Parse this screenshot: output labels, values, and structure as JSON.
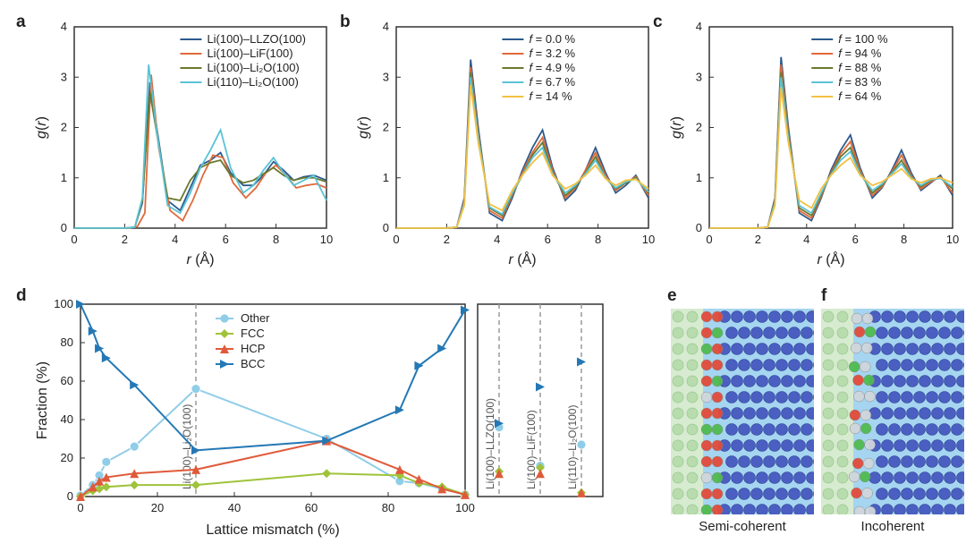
{
  "panel_labels": {
    "a": "a",
    "b": "b",
    "c": "c",
    "d": "d",
    "e": "e",
    "f": "f"
  },
  "colors": {
    "darkblue": "#2c5a8c",
    "orange": "#e06a3b",
    "olive": "#6a7a2d",
    "cyan": "#5bc3d6",
    "yellow": "#f2c142",
    "bcc": "#2478b5",
    "hcp": "#e05a3a",
    "fcc": "#9fc33a",
    "other": "#8fcde8",
    "axis": "#333333",
    "grid": "#cccccc",
    "bg": "#ffffff",
    "atom_bcc": "#4a5fc1",
    "atom_fcc": "#4fbb4f",
    "atom_hcp": "#e24a3a",
    "atom_other": "#d0d6dc",
    "slab_left": "#cfe8c7",
    "slab_right": "#7fc3ea"
  },
  "top_axes": {
    "xlabel": "r (Å)",
    "ylabel": "g(r)",
    "x_italic": "r",
    "y_italic": "g(r)",
    "xlim": [
      0,
      10
    ],
    "ylim": [
      0,
      4
    ],
    "xtick_step": 2,
    "ytick_step": 1,
    "label_fontsize": 16,
    "tick_fontsize": 13
  },
  "panel_a": {
    "legend": [
      "Li(100)–LLZO(100)",
      "Li(100)–LiF(100)",
      "Li(100)–Li₂O(100)",
      "Li(110)–Li₂O(100)"
    ],
    "legend_colors": [
      "#2c5a8c",
      "#e06a3b",
      "#6a7a2d",
      "#5bc3d6"
    ],
    "series": [
      {
        "color": "#2c5a8c",
        "x": [
          0,
          2.0,
          2.4,
          2.7,
          3.0,
          3.3,
          3.7,
          4.2,
          4.6,
          5.0,
          5.4,
          5.8,
          6.2,
          6.7,
          7.1,
          7.5,
          7.9,
          8.3,
          8.7,
          9.1,
          9.5,
          10.0
        ],
        "y": [
          0,
          0,
          0.02,
          0.5,
          2.9,
          1.9,
          0.55,
          0.35,
          0.8,
          1.25,
          1.35,
          1.5,
          1.1,
          0.85,
          0.85,
          1.05,
          1.32,
          1.15,
          0.95,
          1.02,
          1.05,
          0.95
        ]
      },
      {
        "color": "#e06a3b",
        "x": [
          0,
          2.1,
          2.5,
          2.8,
          3.05,
          3.35,
          3.8,
          4.3,
          4.7,
          5.1,
          5.5,
          5.9,
          6.3,
          6.8,
          7.2,
          7.6,
          8.0,
          8.4,
          8.8,
          9.2,
          9.6,
          10.0
        ],
        "y": [
          0,
          0,
          0.03,
          0.3,
          3.05,
          1.6,
          0.35,
          0.15,
          0.55,
          1.05,
          1.45,
          1.4,
          0.9,
          0.6,
          0.8,
          1.1,
          1.25,
          1.05,
          0.8,
          0.85,
          0.88,
          0.8
        ]
      },
      {
        "color": "#6a7a2d",
        "x": [
          0,
          2.0,
          2.4,
          2.7,
          3.0,
          3.3,
          3.7,
          4.2,
          4.6,
          5.0,
          5.4,
          5.8,
          6.2,
          6.7,
          7.1,
          7.5,
          7.9,
          8.3,
          8.7,
          9.1,
          9.5,
          10.0
        ],
        "y": [
          0,
          0,
          0.02,
          0.55,
          2.7,
          1.8,
          0.6,
          0.55,
          0.95,
          1.2,
          1.3,
          1.35,
          1.05,
          0.9,
          0.95,
          1.08,
          1.2,
          1.05,
          0.95,
          1.0,
          1.0,
          0.92
        ]
      },
      {
        "color": "#5bc3d6",
        "x": [
          0,
          2.0,
          2.4,
          2.7,
          2.95,
          3.25,
          3.7,
          4.2,
          4.6,
          5.0,
          5.4,
          5.8,
          6.2,
          6.7,
          7.1,
          7.5,
          7.9,
          8.3,
          8.7,
          9.1,
          9.5,
          10.0
        ],
        "y": [
          0,
          0,
          0.02,
          0.6,
          3.25,
          2.0,
          0.45,
          0.3,
          0.7,
          1.2,
          1.55,
          1.95,
          1.2,
          0.7,
          0.85,
          1.15,
          1.4,
          1.1,
          0.85,
          0.95,
          1.05,
          0.55
        ]
      }
    ]
  },
  "panel_b": {
    "legend": [
      "f = 0.0 %",
      "f = 3.2 %",
      "f = 4.9 %",
      "f = 6.7 %",
      "f = 14 %"
    ],
    "legend_colors": [
      "#2c5a8c",
      "#e06a3b",
      "#6a7a2d",
      "#5bc3d6",
      "#f2c142"
    ],
    "series": [
      {
        "color": "#2c5a8c",
        "x": [
          0,
          2.0,
          2.4,
          2.7,
          2.95,
          3.25,
          3.7,
          4.2,
          4.6,
          5.0,
          5.4,
          5.8,
          6.2,
          6.7,
          7.1,
          7.5,
          7.9,
          8.3,
          8.7,
          9.1,
          9.5,
          10.0
        ],
        "y": [
          0,
          0,
          0.02,
          0.6,
          3.35,
          2.0,
          0.3,
          0.15,
          0.6,
          1.15,
          1.6,
          1.95,
          1.2,
          0.55,
          0.75,
          1.15,
          1.6,
          1.1,
          0.7,
          0.85,
          1.05,
          0.6
        ]
      },
      {
        "color": "#e06a3b",
        "x": [
          0,
          2.0,
          2.4,
          2.7,
          2.95,
          3.25,
          3.7,
          4.2,
          4.6,
          5.0,
          5.4,
          5.8,
          6.2,
          6.7,
          7.1,
          7.5,
          7.9,
          8.3,
          8.7,
          9.1,
          9.5,
          10.0
        ],
        "y": [
          0,
          0,
          0.02,
          0.55,
          3.2,
          1.9,
          0.35,
          0.2,
          0.65,
          1.1,
          1.5,
          1.8,
          1.15,
          0.6,
          0.8,
          1.15,
          1.5,
          1.05,
          0.75,
          0.9,
          1.02,
          0.65
        ]
      },
      {
        "color": "#6a7a2d",
        "x": [
          0,
          2.0,
          2.4,
          2.7,
          2.95,
          3.25,
          3.7,
          4.2,
          4.6,
          5.0,
          5.4,
          5.8,
          6.2,
          6.7,
          7.1,
          7.5,
          7.9,
          8.3,
          8.7,
          9.1,
          9.5,
          10.0
        ],
        "y": [
          0,
          0,
          0.02,
          0.5,
          3.1,
          1.85,
          0.4,
          0.25,
          0.68,
          1.05,
          1.45,
          1.7,
          1.1,
          0.65,
          0.82,
          1.1,
          1.42,
          1.0,
          0.78,
          0.9,
          1.0,
          0.7
        ]
      },
      {
        "color": "#5bc3d6",
        "x": [
          0,
          2.0,
          2.4,
          2.7,
          2.95,
          3.25,
          3.7,
          4.2,
          4.6,
          5.0,
          5.4,
          5.8,
          6.2,
          6.7,
          7.1,
          7.5,
          7.9,
          8.3,
          8.7,
          9.1,
          9.5,
          10.0
        ],
        "y": [
          0,
          0,
          0.02,
          0.5,
          3.0,
          1.8,
          0.42,
          0.28,
          0.7,
          1.05,
          1.4,
          1.6,
          1.08,
          0.7,
          0.85,
          1.08,
          1.35,
          1.0,
          0.8,
          0.92,
          0.98,
          0.72
        ]
      },
      {
        "color": "#f2c142",
        "x": [
          0,
          2.0,
          2.4,
          2.7,
          2.95,
          3.25,
          3.7,
          4.2,
          4.6,
          5.0,
          5.4,
          5.8,
          6.2,
          6.7,
          7.1,
          7.5,
          7.9,
          8.3,
          8.7,
          9.1,
          9.5,
          10.0
        ],
        "y": [
          0,
          0,
          0.02,
          0.45,
          2.85,
          1.7,
          0.48,
          0.35,
          0.75,
          1.05,
          1.3,
          1.5,
          1.05,
          0.78,
          0.88,
          1.05,
          1.25,
          0.98,
          0.85,
          0.95,
          0.97,
          0.78
        ]
      }
    ]
  },
  "panel_c": {
    "legend": [
      "f = 100 %",
      "f =   94 %",
      "f =   88 %",
      "f =   83 %",
      "f =   64 %"
    ],
    "legend_colors": [
      "#2c5a8c",
      "#e06a3b",
      "#6a7a2d",
      "#5bc3d6",
      "#f2c142"
    ],
    "series": [
      {
        "color": "#2c5a8c",
        "x": [
          0,
          2.0,
          2.4,
          2.7,
          2.95,
          3.25,
          3.7,
          4.2,
          4.6,
          5.0,
          5.4,
          5.8,
          6.2,
          6.7,
          7.1,
          7.5,
          7.9,
          8.3,
          8.7,
          9.1,
          9.5,
          10.0
        ],
        "y": [
          0,
          0,
          0.02,
          0.6,
          3.4,
          2.0,
          0.3,
          0.15,
          0.6,
          1.15,
          1.55,
          1.85,
          1.2,
          0.6,
          0.8,
          1.15,
          1.55,
          1.1,
          0.75,
          0.9,
          1.05,
          0.65
        ]
      },
      {
        "color": "#e06a3b",
        "x": [
          0,
          2.0,
          2.4,
          2.7,
          2.95,
          3.25,
          3.7,
          4.2,
          4.6,
          5.0,
          5.4,
          5.8,
          6.2,
          6.7,
          7.1,
          7.5,
          7.9,
          8.3,
          8.7,
          9.1,
          9.5,
          10.0
        ],
        "y": [
          0,
          0,
          0.02,
          0.55,
          3.25,
          1.9,
          0.35,
          0.2,
          0.63,
          1.1,
          1.48,
          1.72,
          1.15,
          0.65,
          0.82,
          1.12,
          1.45,
          1.05,
          0.78,
          0.92,
          1.02,
          0.7
        ]
      },
      {
        "color": "#6a7a2d",
        "x": [
          0,
          2.0,
          2.4,
          2.7,
          2.95,
          3.25,
          3.7,
          4.2,
          4.6,
          5.0,
          5.4,
          5.8,
          6.2,
          6.7,
          7.1,
          7.5,
          7.9,
          8.3,
          8.7,
          9.1,
          9.5,
          10.0
        ],
        "y": [
          0,
          0,
          0.02,
          0.52,
          3.1,
          1.85,
          0.4,
          0.25,
          0.66,
          1.08,
          1.42,
          1.6,
          1.1,
          0.7,
          0.85,
          1.1,
          1.35,
          1.02,
          0.82,
          0.95,
          1.0,
          0.78
        ]
      },
      {
        "color": "#5bc3d6",
        "x": [
          0,
          2.0,
          2.4,
          2.7,
          2.95,
          3.25,
          3.7,
          4.2,
          4.6,
          5.0,
          5.4,
          5.8,
          6.2,
          6.7,
          7.1,
          7.5,
          7.9,
          8.3,
          8.7,
          9.1,
          9.5,
          10.0
        ],
        "y": [
          0,
          0,
          0.02,
          0.5,
          3.0,
          1.78,
          0.45,
          0.3,
          0.7,
          1.06,
          1.35,
          1.52,
          1.08,
          0.75,
          0.88,
          1.08,
          1.28,
          1.0,
          0.85,
          0.96,
          0.99,
          0.82
        ]
      },
      {
        "color": "#f2c142",
        "x": [
          0,
          2.0,
          2.4,
          2.7,
          2.95,
          3.25,
          3.7,
          4.2,
          4.6,
          5.0,
          5.4,
          5.8,
          6.2,
          6.7,
          7.1,
          7.5,
          7.9,
          8.3,
          8.7,
          9.1,
          9.5,
          10.0
        ],
        "y": [
          0,
          0,
          0.02,
          0.45,
          2.8,
          1.7,
          0.55,
          0.4,
          0.78,
          1.05,
          1.25,
          1.4,
          1.05,
          0.85,
          0.92,
          1.05,
          1.18,
          0.98,
          0.9,
          0.98,
          1.0,
          0.9
        ]
      }
    ]
  },
  "panel_d": {
    "xlabel": "Lattice mismatch (%)",
    "ylabel": "Fraction (%)",
    "xlim": [
      0,
      100
    ],
    "ylim": [
      0,
      100
    ],
    "xtick_step": 20,
    "ytick_step": 20,
    "legend": [
      {
        "label": "Other",
        "color": "#8fcde8",
        "marker": "circle"
      },
      {
        "label": "FCC",
        "color": "#9fc33a",
        "marker": "diamond"
      },
      {
        "label": "HCP",
        "color": "#e05a3a",
        "marker": "triangle"
      },
      {
        "label": "BCC",
        "color": "#2478b5",
        "marker": "rtriangle"
      }
    ],
    "series": {
      "x": [
        0,
        3.2,
        4.9,
        6.7,
        14,
        30,
        64,
        83,
        88,
        94,
        100
      ],
      "other": [
        0.5,
        6,
        11,
        18,
        26,
        56,
        30,
        8,
        7,
        4,
        1
      ],
      "fcc": [
        0,
        3,
        4,
        5,
        6,
        6,
        12,
        11,
        7,
        5,
        1
      ],
      "hcp": [
        0,
        5,
        8,
        10,
        12,
        14,
        29,
        14,
        9,
        4,
        1
      ],
      "bcc": [
        100,
        86,
        77,
        72,
        58,
        24,
        29,
        45,
        68,
        77,
        97
      ]
    },
    "annotation": {
      "x": 30,
      "label": "Li(100)–Li₂O(100)"
    },
    "side_panel": {
      "labels": [
        "Li(100)–LLZO(100)",
        "Li(100)–LiF(100)",
        "Li(110)–Li₂O(100)"
      ],
      "points": [
        {
          "x": 0,
          "bcc": 38,
          "other": 36,
          "fcc": 13,
          "hcp": 12
        },
        {
          "x": 1,
          "bcc": 57,
          "other": 16,
          "fcc": 15,
          "hcp": 12
        },
        {
          "x": 2,
          "bcc": 70,
          "other": 27,
          "fcc": 2,
          "hcp": 2
        }
      ]
    }
  },
  "panel_e": {
    "caption": "Semi-coherent"
  },
  "panel_f": {
    "caption": "Incoherent"
  }
}
